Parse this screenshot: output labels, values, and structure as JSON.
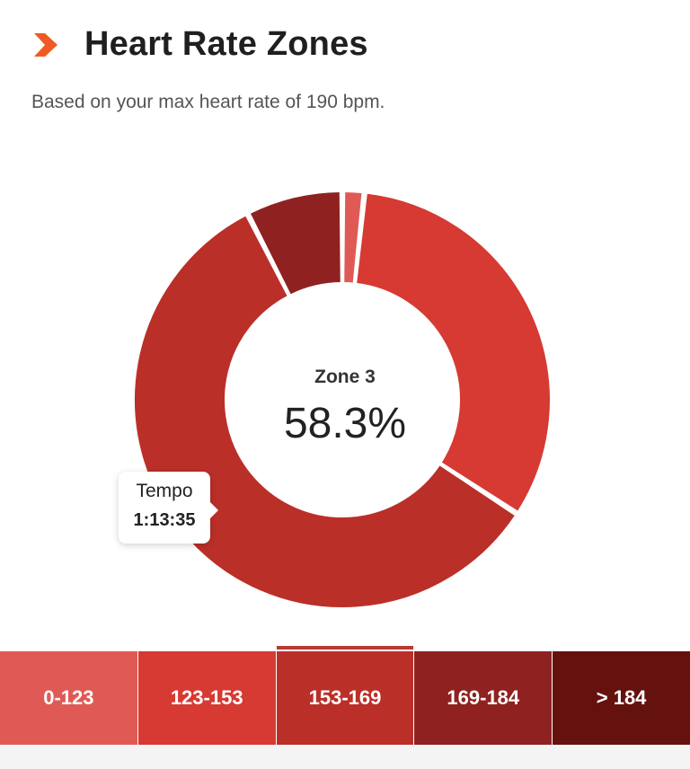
{
  "header": {
    "title": "Heart Rate Zones",
    "subtitle": "Based on your max heart rate of 190 bpm."
  },
  "center": {
    "zone_label": "Zone 3",
    "percent": "58.3%"
  },
  "tooltip": {
    "name": "Tempo",
    "time": "1:13:35"
  },
  "zones": [
    {
      "label": "0-123",
      "color": "#e05a55"
    },
    {
      "label": "123-153",
      "color": "#d63a33"
    },
    {
      "label": "153-169",
      "color": "#bb2f29"
    },
    {
      "label": "169-184",
      "color": "#8f2220"
    },
    {
      "label": "> 184",
      "color": "#65120f"
    }
  ],
  "selected_zone_index": 2,
  "colors": {
    "accent": "#f15a24",
    "title": "#1f1f1f"
  },
  "chart_data": {
    "type": "pie",
    "categories": [
      "0-123",
      "123-153",
      "153-169",
      "169-184",
      "> 184"
    ],
    "values": [
      1.7,
      32.5,
      58.3,
      7.5,
      0
    ],
    "colors": [
      "#e05a55",
      "#d63a33",
      "#bb2f29",
      "#8f2220",
      "#65120f"
    ],
    "highlighted_index": 2,
    "center_label": "Zone 3",
    "center_value": "58.3%"
  }
}
